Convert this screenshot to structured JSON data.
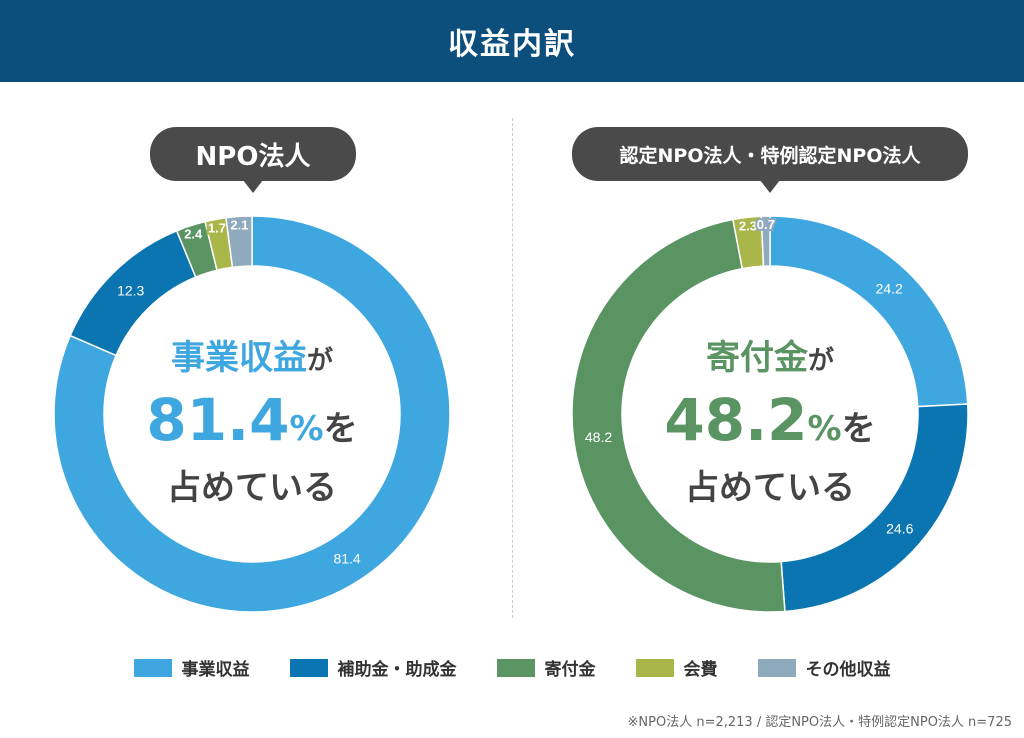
{
  "header": {
    "title": "収益内訳"
  },
  "chart_data": [
    {
      "type": "pie",
      "donut": true,
      "title": "NPO法人",
      "categories": [
        "事業収益",
        "補助金・助成金",
        "寄付金",
        "会費",
        "その他収益"
      ],
      "values": [
        81.4,
        12.3,
        2.4,
        1.7,
        2.1
      ],
      "center_text": {
        "line1": "事業収益",
        "line1_suffix": "が",
        "value": "81.4",
        "unit": "%",
        "value_suffix": "を",
        "line3": "占めている"
      },
      "highlight_color": "#3fa7e0"
    },
    {
      "type": "pie",
      "donut": true,
      "title": "認定NPO法人・特例認定NPO法人",
      "categories": [
        "事業収益",
        "補助金・助成金",
        "寄付金",
        "会費",
        "その他収益"
      ],
      "values": [
        24.2,
        24.6,
        48.2,
        2.3,
        0.7
      ],
      "center_text": {
        "line1": "寄付金",
        "line1_suffix": "が",
        "value": "48.2",
        "unit": "%",
        "value_suffix": "を",
        "line3": "占めている"
      },
      "highlight_color": "#5a9462"
    }
  ],
  "legend": [
    {
      "label": "事業収益",
      "color": "#3fa7e0"
    },
    {
      "label": "補助金・助成金",
      "color": "#0a75b0"
    },
    {
      "label": "寄付金",
      "color": "#5a9462"
    },
    {
      "label": "会費",
      "color": "#a9b64a"
    },
    {
      "label": "その他収益",
      "color": "#8fa9bd"
    }
  ],
  "legend_placement": "bottom",
  "footnote": "※NPO法人 n=2,213 / 認定NPO法人・特例認定NPO法人 n=725"
}
